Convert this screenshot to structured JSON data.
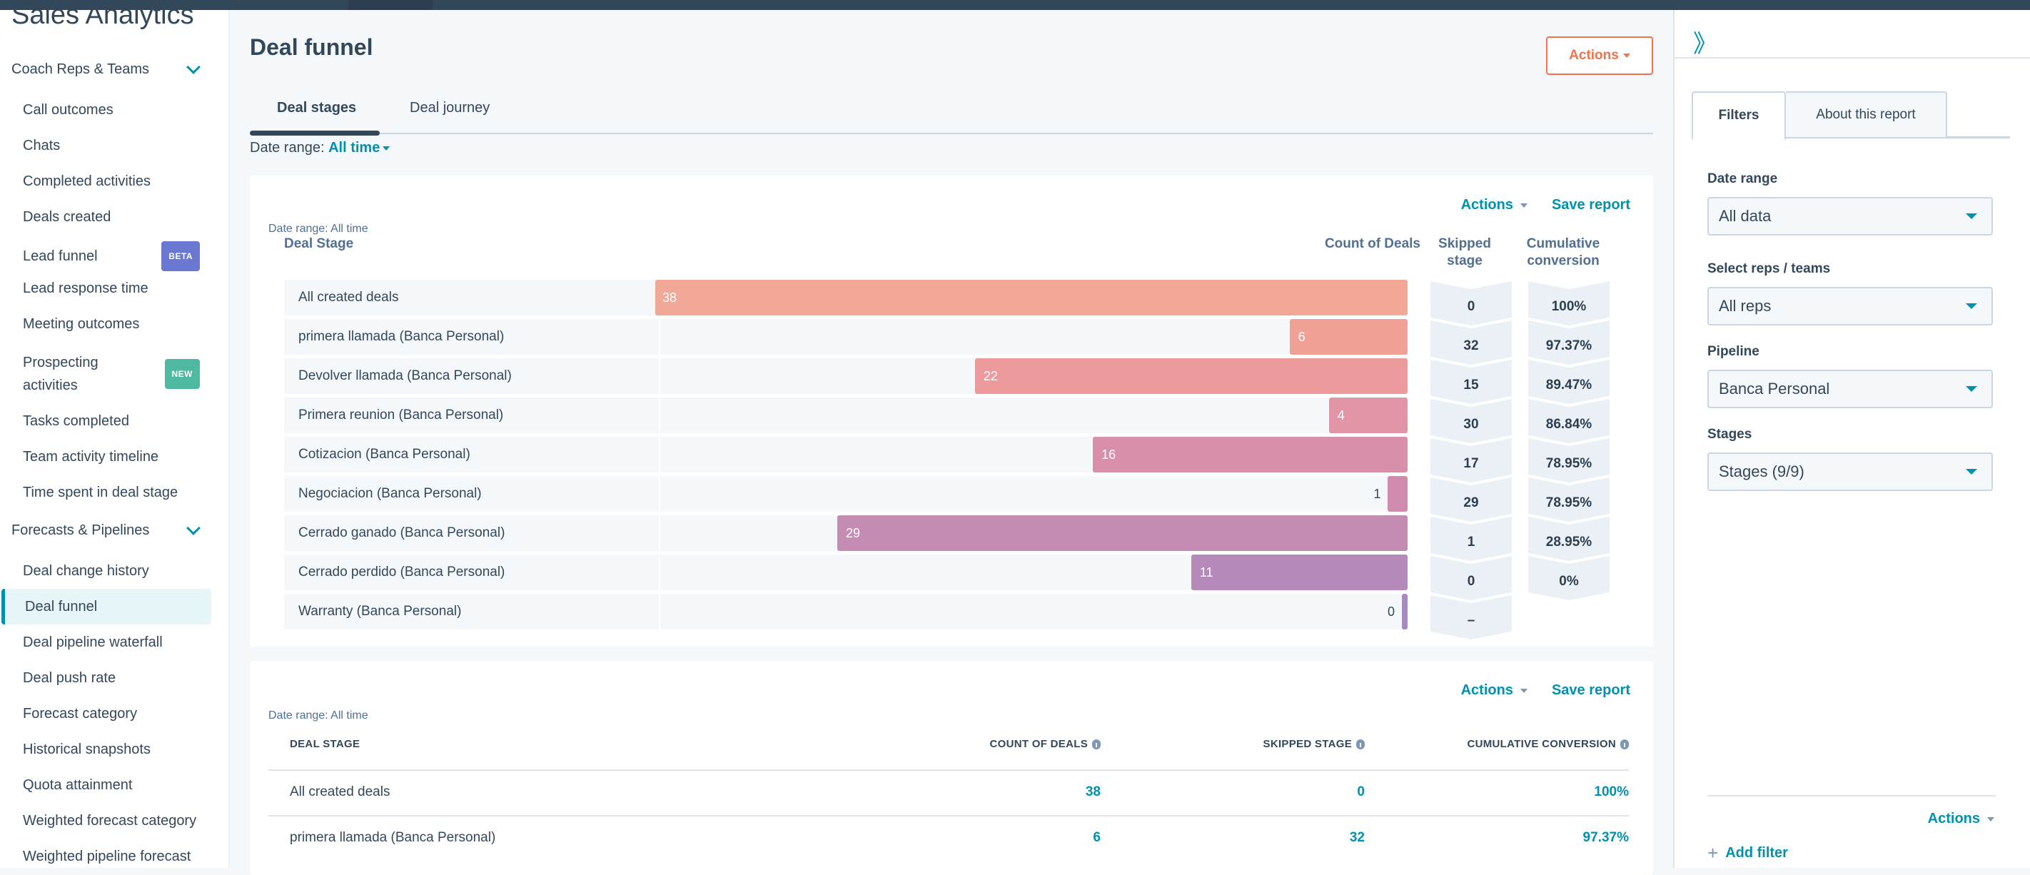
{
  "sidebar": {
    "title": "Sales Analytics",
    "groups": [
      {
        "label": "Coach Reps & Teams",
        "items": [
          {
            "label": "Call outcomes"
          },
          {
            "label": "Chats"
          },
          {
            "label": "Completed activities"
          },
          {
            "label": "Deals created"
          },
          {
            "label": "Lead funnel",
            "badge": "BETA"
          },
          {
            "label": "Lead response time"
          },
          {
            "label": "Meeting outcomes"
          },
          {
            "label": "Prospecting activities",
            "badge": "NEW"
          },
          {
            "label": "Tasks completed"
          },
          {
            "label": "Team activity timeline"
          },
          {
            "label": "Time spent in deal stage"
          }
        ]
      },
      {
        "label": "Forecasts & Pipelines",
        "items": [
          {
            "label": "Deal change history"
          },
          {
            "label": "Deal funnel",
            "active": true
          },
          {
            "label": "Deal pipeline waterfall"
          },
          {
            "label": "Deal push rate"
          },
          {
            "label": "Forecast category"
          },
          {
            "label": "Historical snapshots"
          },
          {
            "label": "Quota attainment"
          },
          {
            "label": "Weighted forecast category"
          },
          {
            "label": "Weighted pipeline forecast"
          }
        ]
      }
    ]
  },
  "main": {
    "title": "Deal funnel",
    "actions_label": "Actions",
    "tabs": [
      {
        "label": "Deal stages",
        "active": true
      },
      {
        "label": "Deal journey"
      }
    ],
    "date_range_label": "Date range:",
    "date_range_value": "All time"
  },
  "funnel_card": {
    "actions_label": "Actions",
    "save_label": "Save report",
    "meta": "Date range: All time",
    "col_stage": "Deal Stage",
    "col_count": "Count of Deals",
    "col_skipped": "Skipped stage",
    "col_conversion": "Cumulative conversion"
  },
  "table_card": {
    "actions_label": "Actions",
    "save_label": "Save report",
    "meta": "Date range: All time",
    "col_stage": "DEAL STAGE",
    "col_count": "COUNT OF DEALS",
    "col_skipped": "SKIPPED STAGE",
    "col_conversion": "CUMULATIVE CONVERSION",
    "rows": [
      {
        "stage": "All created deals",
        "count": "38",
        "skipped": "0",
        "conversion": "100%"
      },
      {
        "stage": "primera llamada (Banca Personal)",
        "count": "6",
        "skipped": "32",
        "conversion": "97.37%"
      }
    ]
  },
  "chart_data": {
    "type": "bar",
    "orientation": "horizontal-funnel",
    "title": "Deal funnel - Deal stages",
    "xlabel": "Count of Deals",
    "ylabel": "Deal Stage",
    "categories": [
      "All created deals",
      "primera llamada (Banca Personal)",
      "Devolver llamada (Banca Personal)",
      "Primera reunion (Banca Personal)",
      "Cotizacion (Banca Personal)",
      "Negociacion (Banca Personal)",
      "Cerrado ganado (Banca Personal)",
      "Cerrado perdido (Banca Personal)",
      "Warranty (Banca Personal)"
    ],
    "values": [
      38,
      6,
      22,
      4,
      16,
      1,
      29,
      11,
      0
    ],
    "skipped_stage": [
      "0",
      "32",
      "15",
      "30",
      "17",
      "29",
      "1",
      "0",
      "–"
    ],
    "cumulative_conversion": [
      "100%",
      "97.37%",
      "89.47%",
      "86.84%",
      "78.95%",
      "78.95%",
      "28.95%",
      "0%",
      ""
    ],
    "colors": [
      "#f2a896",
      "#f0a095",
      "#ec9a9c",
      "#e295a6",
      "#d98faa",
      "#d08cae",
      "#c48bb3",
      "#b589b9",
      "#a88abf"
    ],
    "xlim": [
      0,
      38
    ]
  },
  "right_panel": {
    "tabs": [
      {
        "label": "Filters",
        "active": true
      },
      {
        "label": "About this report"
      }
    ],
    "filters": [
      {
        "label": "Date range",
        "value": "All data"
      },
      {
        "label": "Select reps / teams",
        "value": "All reps"
      },
      {
        "label": "Pipeline",
        "value": "Banca Personal"
      },
      {
        "label": "Stages",
        "value": "Stages (9/9)"
      }
    ],
    "actions_label": "Actions",
    "add_filter_label": "Add filter"
  }
}
